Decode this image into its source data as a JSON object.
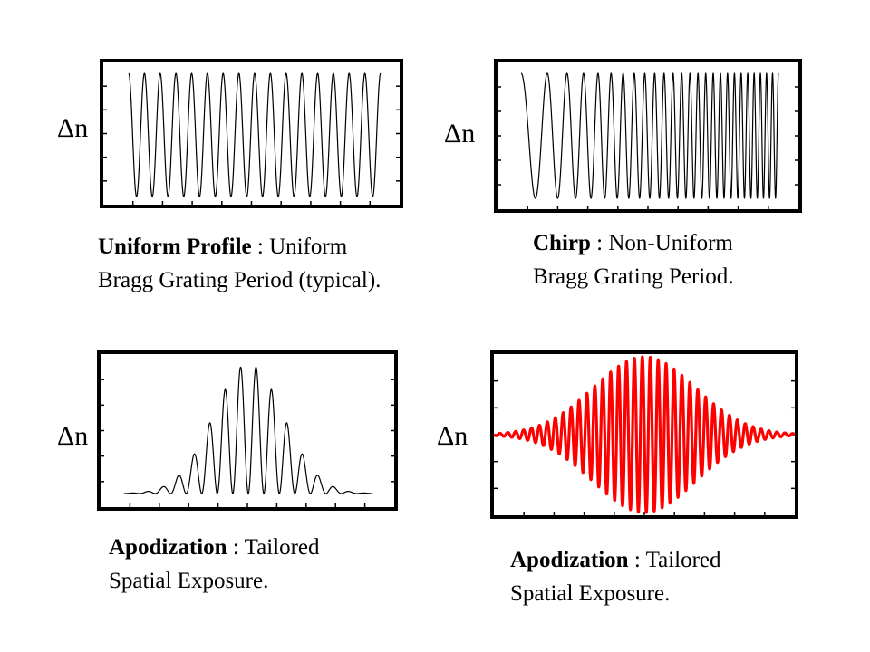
{
  "colors": {
    "stroke_black": "#000000",
    "stroke_red": "#ff0000"
  },
  "panels": [
    {
      "id": "uniform",
      "ylabel": "Δn",
      "caption_bold": "Uniform Profile",
      "caption_sep": " : ",
      "caption_line1": "Uniform",
      "caption_line2": "Bragg Grating Period (typical)."
    },
    {
      "id": "chirp",
      "ylabel": "Δn",
      "caption_bold": "Chirp",
      "caption_sep": " : ",
      "caption_line1": "Non-Uniform",
      "caption_line2": "Bragg Grating Period."
    },
    {
      "id": "apod-black",
      "ylabel": "Δn",
      "caption_bold": "Apodization",
      "caption_sep": " : ",
      "caption_line1": "Tailored",
      "caption_line2": "Spatial Exposure."
    },
    {
      "id": "apod-red",
      "ylabel": "Δn",
      "caption_bold": "Apodization",
      "caption_sep": " : ",
      "caption_line1": "Tailored",
      "caption_line2": "Spatial Exposure."
    }
  ]
}
